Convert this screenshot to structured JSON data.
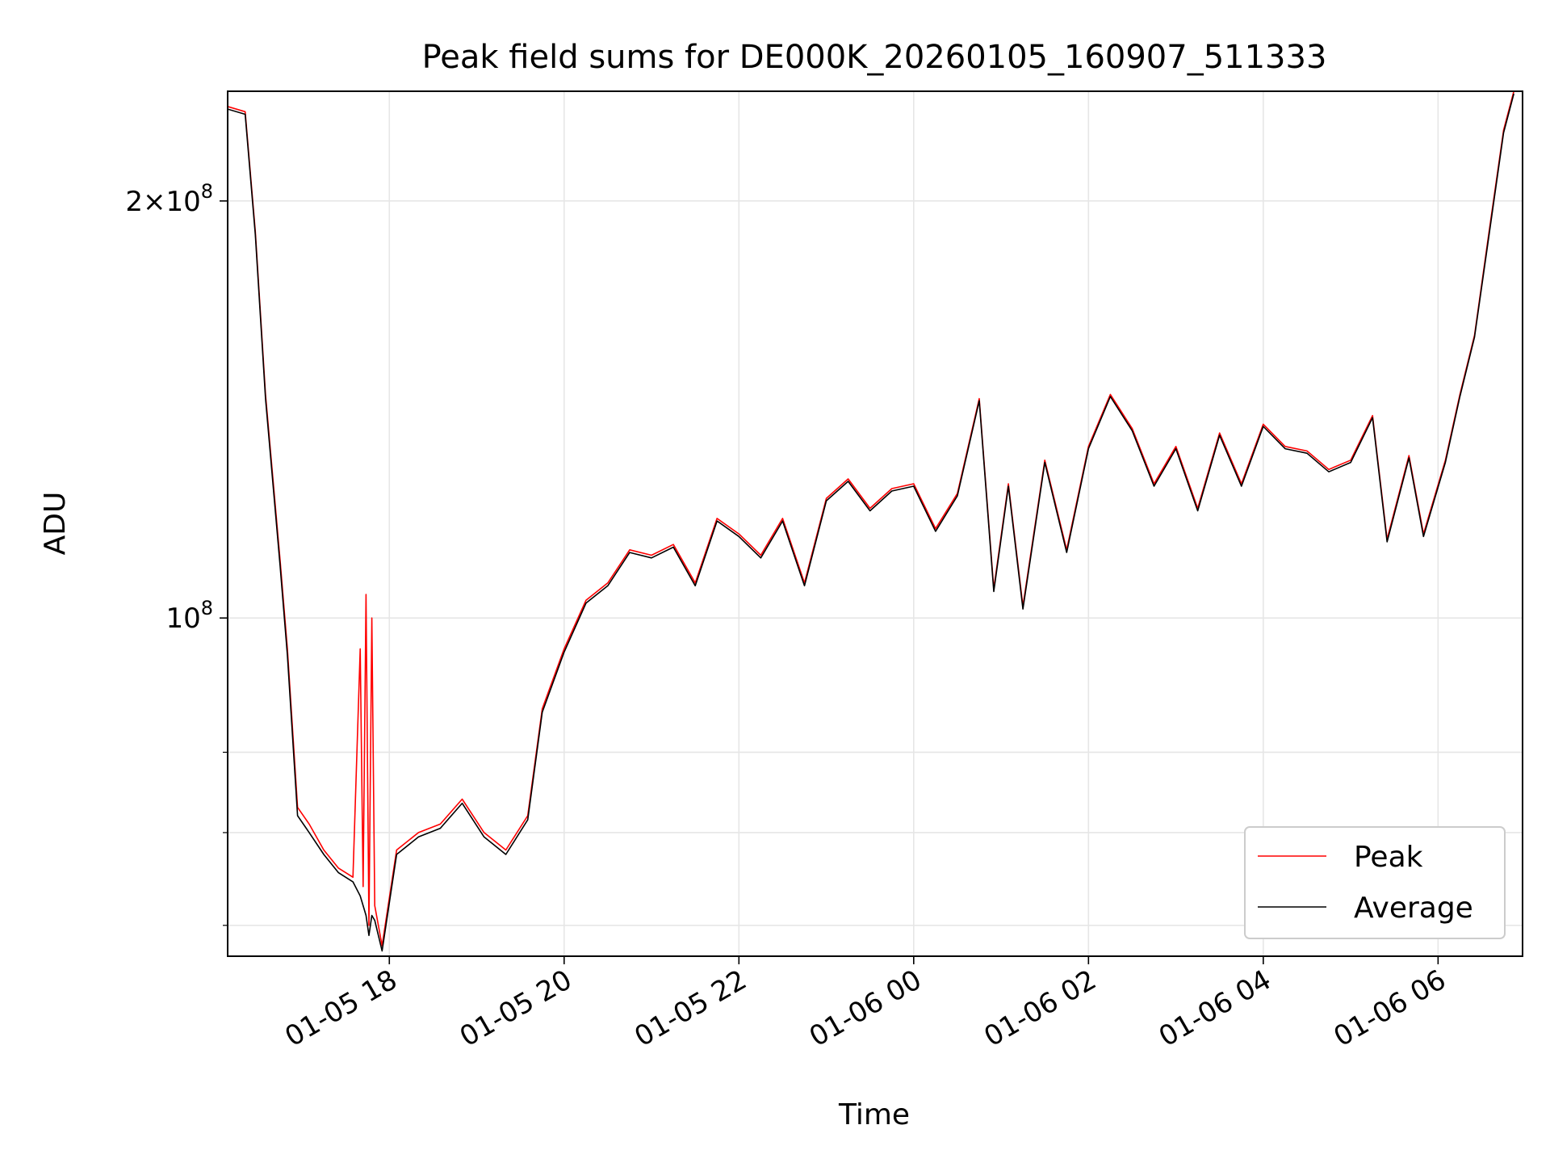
{
  "chart_data": {
    "type": "line",
    "title": "Peak field sums for DE000K_20260105_160907_511333",
    "xlabel": "Time",
    "ylabel": "ADU",
    "x_range": [
      "2026-01-05 16:09",
      "2026-01-06 06:58"
    ],
    "y_scale": "log",
    "ylim": [
      57000000,
      240000000
    ],
    "grid": true,
    "legend_position": "lower-right",
    "x_ticks": [
      {
        "value": "2026-01-05 18:00",
        "label": "01-05 18"
      },
      {
        "value": "2026-01-05 20:00",
        "label": "01-05 20"
      },
      {
        "value": "2026-01-05 22:00",
        "label": "01-05 22"
      },
      {
        "value": "2026-01-06 00:00",
        "label": "01-06 00"
      },
      {
        "value": "2026-01-06 02:00",
        "label": "01-06 02"
      },
      {
        "value": "2026-01-06 04:00",
        "label": "01-06 04"
      },
      {
        "value": "2026-01-06 06:00",
        "label": "01-06 06"
      }
    ],
    "y_major_ticks": [
      {
        "value": 100000000,
        "base": "10",
        "exp": "8",
        "coef": ""
      },
      {
        "value": 200000000,
        "base": "10",
        "exp": "8",
        "coef": "2"
      }
    ],
    "y_minor_ticks": [
      60000000,
      70000000,
      80000000
    ],
    "series": [
      {
        "name": "Peak",
        "color": "#ff0000",
        "points": [
          [
            "2026-01-05 16:09",
            234000000
          ],
          [
            "2026-01-05 16:21",
            232000000
          ],
          [
            "2026-01-05 16:28",
            190000000
          ],
          [
            "2026-01-05 16:35",
            145000000
          ],
          [
            "2026-01-05 16:45",
            110000000
          ],
          [
            "2026-01-05 16:50",
            95000000
          ],
          [
            "2026-01-05 16:57",
            73000000
          ],
          [
            "2026-01-05 17:05",
            71000000
          ],
          [
            "2026-01-05 17:15",
            68000000
          ],
          [
            "2026-01-05 17:25",
            66000000
          ],
          [
            "2026-01-05 17:35",
            65000000
          ],
          [
            "2026-01-05 17:40",
            95000000
          ],
          [
            "2026-01-05 17:42",
            64000000
          ],
          [
            "2026-01-05 17:44",
            104000000
          ],
          [
            "2026-01-05 17:46",
            60000000
          ],
          [
            "2026-01-05 17:48",
            100000000
          ],
          [
            "2026-01-05 17:50",
            62000000
          ],
          [
            "2026-01-05 17:55",
            58000000
          ],
          [
            "2026-01-05 18:05",
            68000000
          ],
          [
            "2026-01-05 18:20",
            70000000
          ],
          [
            "2026-01-05 18:35",
            71000000
          ],
          [
            "2026-01-05 18:50",
            74000000
          ],
          [
            "2026-01-05 19:05",
            70000000
          ],
          [
            "2026-01-05 19:20",
            68000000
          ],
          [
            "2026-01-05 19:35",
            72000000
          ],
          [
            "2026-01-05 19:45",
            86000000
          ],
          [
            "2026-01-05 20:00",
            95000000
          ],
          [
            "2026-01-05 20:15",
            103000000
          ],
          [
            "2026-01-05 20:30",
            106000000
          ],
          [
            "2026-01-05 20:45",
            112000000
          ],
          [
            "2026-01-05 21:00",
            111000000
          ],
          [
            "2026-01-05 21:15",
            113000000
          ],
          [
            "2026-01-05 21:30",
            106000000
          ],
          [
            "2026-01-05 21:45",
            118000000
          ],
          [
            "2026-01-05 22:00",
            115000000
          ],
          [
            "2026-01-05 22:15",
            111000000
          ],
          [
            "2026-01-05 22:30",
            118000000
          ],
          [
            "2026-01-05 22:45",
            106000000
          ],
          [
            "2026-01-05 23:00",
            122000000
          ],
          [
            "2026-01-05 23:15",
            126000000
          ],
          [
            "2026-01-05 23:30",
            120000000
          ],
          [
            "2026-01-05 23:45",
            124000000
          ],
          [
            "2026-01-06 00:00",
            125000000
          ],
          [
            "2026-01-06 00:15",
            116000000
          ],
          [
            "2026-01-06 00:30",
            123000000
          ],
          [
            "2026-01-06 00:45",
            144000000
          ],
          [
            "2026-01-06 00:55",
            105000000
          ],
          [
            "2026-01-06 01:05",
            125000000
          ],
          [
            "2026-01-06 01:15",
            102000000
          ],
          [
            "2026-01-06 01:30",
            130000000
          ],
          [
            "2026-01-06 01:45",
            112000000
          ],
          [
            "2026-01-06 02:00",
            133000000
          ],
          [
            "2026-01-06 02:15",
            145000000
          ],
          [
            "2026-01-06 02:30",
            137000000
          ],
          [
            "2026-01-06 02:45",
            125000000
          ],
          [
            "2026-01-06 03:00",
            133000000
          ],
          [
            "2026-01-06 03:15",
            120000000
          ],
          [
            "2026-01-06 03:30",
            136000000
          ],
          [
            "2026-01-06 03:45",
            125000000
          ],
          [
            "2026-01-06 04:00",
            138000000
          ],
          [
            "2026-01-06 04:15",
            133000000
          ],
          [
            "2026-01-06 04:30",
            132000000
          ],
          [
            "2026-01-06 04:45",
            128000000
          ],
          [
            "2026-01-06 05:00",
            130000000
          ],
          [
            "2026-01-06 05:15",
            140000000
          ],
          [
            "2026-01-06 05:25",
            114000000
          ],
          [
            "2026-01-06 05:40",
            131000000
          ],
          [
            "2026-01-06 05:50",
            115000000
          ],
          [
            "2026-01-06 06:05",
            130000000
          ],
          [
            "2026-01-06 06:15",
            145000000
          ],
          [
            "2026-01-06 06:25",
            160000000
          ],
          [
            "2026-01-06 06:35",
            190000000
          ],
          [
            "2026-01-06 06:45",
            225000000
          ],
          [
            "2026-01-06 06:52",
            240000000
          ]
        ]
      },
      {
        "name": "Average",
        "color": "#000000",
        "points": [
          [
            "2026-01-05 16:09",
            233000000
          ],
          [
            "2026-01-05 16:21",
            231000000
          ],
          [
            "2026-01-05 16:28",
            189000000
          ],
          [
            "2026-01-05 16:35",
            144000000
          ],
          [
            "2026-01-05 16:45",
            109000000
          ],
          [
            "2026-01-05 16:50",
            94000000
          ],
          [
            "2026-01-05 16:57",
            72000000
          ],
          [
            "2026-01-05 17:05",
            70000000
          ],
          [
            "2026-01-05 17:15",
            67500000
          ],
          [
            "2026-01-05 17:25",
            65500000
          ],
          [
            "2026-01-05 17:35",
            64500000
          ],
          [
            "2026-01-05 17:40",
            63000000
          ],
          [
            "2026-01-05 17:42",
            62000000
          ],
          [
            "2026-01-05 17:44",
            61000000
          ],
          [
            "2026-01-05 17:46",
            59000000
          ],
          [
            "2026-01-05 17:48",
            61000000
          ],
          [
            "2026-01-05 17:50",
            60500000
          ],
          [
            "2026-01-05 17:55",
            57500000
          ],
          [
            "2026-01-05 18:05",
            67500000
          ],
          [
            "2026-01-05 18:20",
            69500000
          ],
          [
            "2026-01-05 18:35",
            70500000
          ],
          [
            "2026-01-05 18:50",
            73500000
          ],
          [
            "2026-01-05 19:05",
            69500000
          ],
          [
            "2026-01-05 19:20",
            67500000
          ],
          [
            "2026-01-05 19:35",
            71500000
          ],
          [
            "2026-01-05 19:45",
            85500000
          ],
          [
            "2026-01-05 20:00",
            94500000
          ],
          [
            "2026-01-05 20:15",
            102500000
          ],
          [
            "2026-01-05 20:30",
            105500000
          ],
          [
            "2026-01-05 20:45",
            111500000
          ],
          [
            "2026-01-05 21:00",
            110500000
          ],
          [
            "2026-01-05 21:15",
            112500000
          ],
          [
            "2026-01-05 21:30",
            105500000
          ],
          [
            "2026-01-05 21:45",
            117500000
          ],
          [
            "2026-01-05 22:00",
            114500000
          ],
          [
            "2026-01-05 22:15",
            110500000
          ],
          [
            "2026-01-05 22:30",
            117500000
          ],
          [
            "2026-01-05 22:45",
            105500000
          ],
          [
            "2026-01-05 23:00",
            121500000
          ],
          [
            "2026-01-05 23:15",
            125500000
          ],
          [
            "2026-01-05 23:30",
            119500000
          ],
          [
            "2026-01-05 23:45",
            123500000
          ],
          [
            "2026-01-06 00:00",
            124500000
          ],
          [
            "2026-01-06 00:15",
            115500000
          ],
          [
            "2026-01-06 00:30",
            122500000
          ],
          [
            "2026-01-06 00:45",
            143500000
          ],
          [
            "2026-01-06 00:55",
            104500000
          ],
          [
            "2026-01-06 01:05",
            124500000
          ],
          [
            "2026-01-06 01:15",
            101500000
          ],
          [
            "2026-01-06 01:30",
            129500000
          ],
          [
            "2026-01-06 01:45",
            111500000
          ],
          [
            "2026-01-06 02:00",
            132500000
          ],
          [
            "2026-01-06 02:15",
            144500000
          ],
          [
            "2026-01-06 02:30",
            136500000
          ],
          [
            "2026-01-06 02:45",
            124500000
          ],
          [
            "2026-01-06 03:00",
            132500000
          ],
          [
            "2026-01-06 03:15",
            119500000
          ],
          [
            "2026-01-06 03:30",
            135500000
          ],
          [
            "2026-01-06 03:45",
            124500000
          ],
          [
            "2026-01-06 04:00",
            137500000
          ],
          [
            "2026-01-06 04:15",
            132500000
          ],
          [
            "2026-01-06 04:30",
            131500000
          ],
          [
            "2026-01-06 04:45",
            127500000
          ],
          [
            "2026-01-06 05:00",
            129500000
          ],
          [
            "2026-01-06 05:15",
            139500000
          ],
          [
            "2026-01-06 05:25",
            113500000
          ],
          [
            "2026-01-06 05:40",
            130500000
          ],
          [
            "2026-01-06 05:50",
            114500000
          ],
          [
            "2026-01-06 06:05",
            129500000
          ],
          [
            "2026-01-06 06:15",
            144500000
          ],
          [
            "2026-01-06 06:25",
            159500000
          ],
          [
            "2026-01-06 06:35",
            189000000
          ],
          [
            "2026-01-06 06:45",
            224000000
          ],
          [
            "2026-01-06 06:52",
            239000000
          ]
        ]
      }
    ]
  }
}
